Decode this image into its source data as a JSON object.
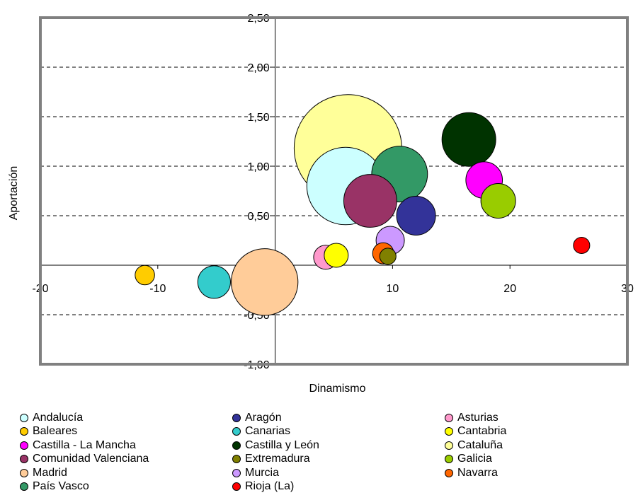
{
  "chart_data": {
    "type": "scatter",
    "title": "",
    "xlabel": "Dinamismo",
    "ylabel": "Aportación",
    "xlim": [
      -20,
      30
    ],
    "ylim": [
      -1.0,
      2.5
    ],
    "xticks": [
      {
        "value": -20,
        "label": "-20"
      },
      {
        "value": -10,
        "label": "-10"
      },
      {
        "value": 0,
        "label": "0"
      },
      {
        "value": 10,
        "label": "10"
      },
      {
        "value": 20,
        "label": "20"
      },
      {
        "value": 30,
        "label": "30"
      }
    ],
    "yticks": [
      {
        "value": 2.5,
        "label": "2,50"
      },
      {
        "value": 2.0,
        "label": "2,00"
      },
      {
        "value": 1.5,
        "label": "1,50"
      },
      {
        "value": 1.0,
        "label": "1,00"
      },
      {
        "value": 0.5,
        "label": "0,50"
      },
      {
        "value": 0.0,
        "label": "0,00"
      },
      {
        "value": -0.5,
        "label": "-0,50"
      },
      {
        "value": -1.0,
        "label": "-1,00"
      }
    ],
    "grid": "horizontal-dashed",
    "legend_position": "bottom",
    "series": [
      {
        "name": "Andalucía",
        "x": 6.0,
        "y": 0.8,
        "size": 13.5,
        "color": "#CCFFFF"
      },
      {
        "name": "Aragón",
        "x": 12.0,
        "y": 0.5,
        "size": 3.4,
        "color": "#333399"
      },
      {
        "name": "Asturias",
        "x": 4.3,
        "y": 0.08,
        "size": 1.3,
        "color": "#FF99CC"
      },
      {
        "name": "Baleares",
        "x": -11.1,
        "y": -0.1,
        "size": 0.85,
        "color": "#FFCC00"
      },
      {
        "name": "Canarias",
        "x": -5.2,
        "y": -0.17,
        "size": 2.4,
        "color": "#33CCCC"
      },
      {
        "name": "Cantabria",
        "x": 5.2,
        "y": 0.1,
        "size": 1.3,
        "color": "#FFFF00"
      },
      {
        "name": "Castilla - La Mancha",
        "x": 17.8,
        "y": 0.86,
        "size": 3.0,
        "color": "#FF00FF"
      },
      {
        "name": "Castilla y León",
        "x": 16.5,
        "y": 1.27,
        "size": 6.5,
        "color": "#003300"
      },
      {
        "name": "Cataluña",
        "x": 6.2,
        "y": 1.18,
        "size": 26.0,
        "color": "#FFFF99"
      },
      {
        "name": "Comunidad Valenciana",
        "x": 8.1,
        "y": 0.65,
        "size": 6.3,
        "color": "#993366"
      },
      {
        "name": "Extremadura",
        "x": 9.6,
        "y": 0.09,
        "size": 0.6,
        "color": "#808000"
      },
      {
        "name": "Galicia",
        "x": 19.0,
        "y": 0.65,
        "size": 2.7,
        "color": "#99CC00"
      },
      {
        "name": "Madrid",
        "x": -0.9,
        "y": -0.17,
        "size": 10.0,
        "color": "#FFCC99"
      },
      {
        "name": "Murcia",
        "x": 9.8,
        "y": 0.25,
        "size": 1.8,
        "color": "#CC99FF"
      },
      {
        "name": "Navarra",
        "x": 9.2,
        "y": 0.12,
        "size": 1.0,
        "color": "#FF6600"
      },
      {
        "name": "País Vasco",
        "x": 10.6,
        "y": 0.92,
        "size": 7.0,
        "color": "#339966"
      },
      {
        "name": "Rioja (La)",
        "x": 26.1,
        "y": 0.2,
        "size": 0.6,
        "color": "#FF0000"
      }
    ]
  }
}
